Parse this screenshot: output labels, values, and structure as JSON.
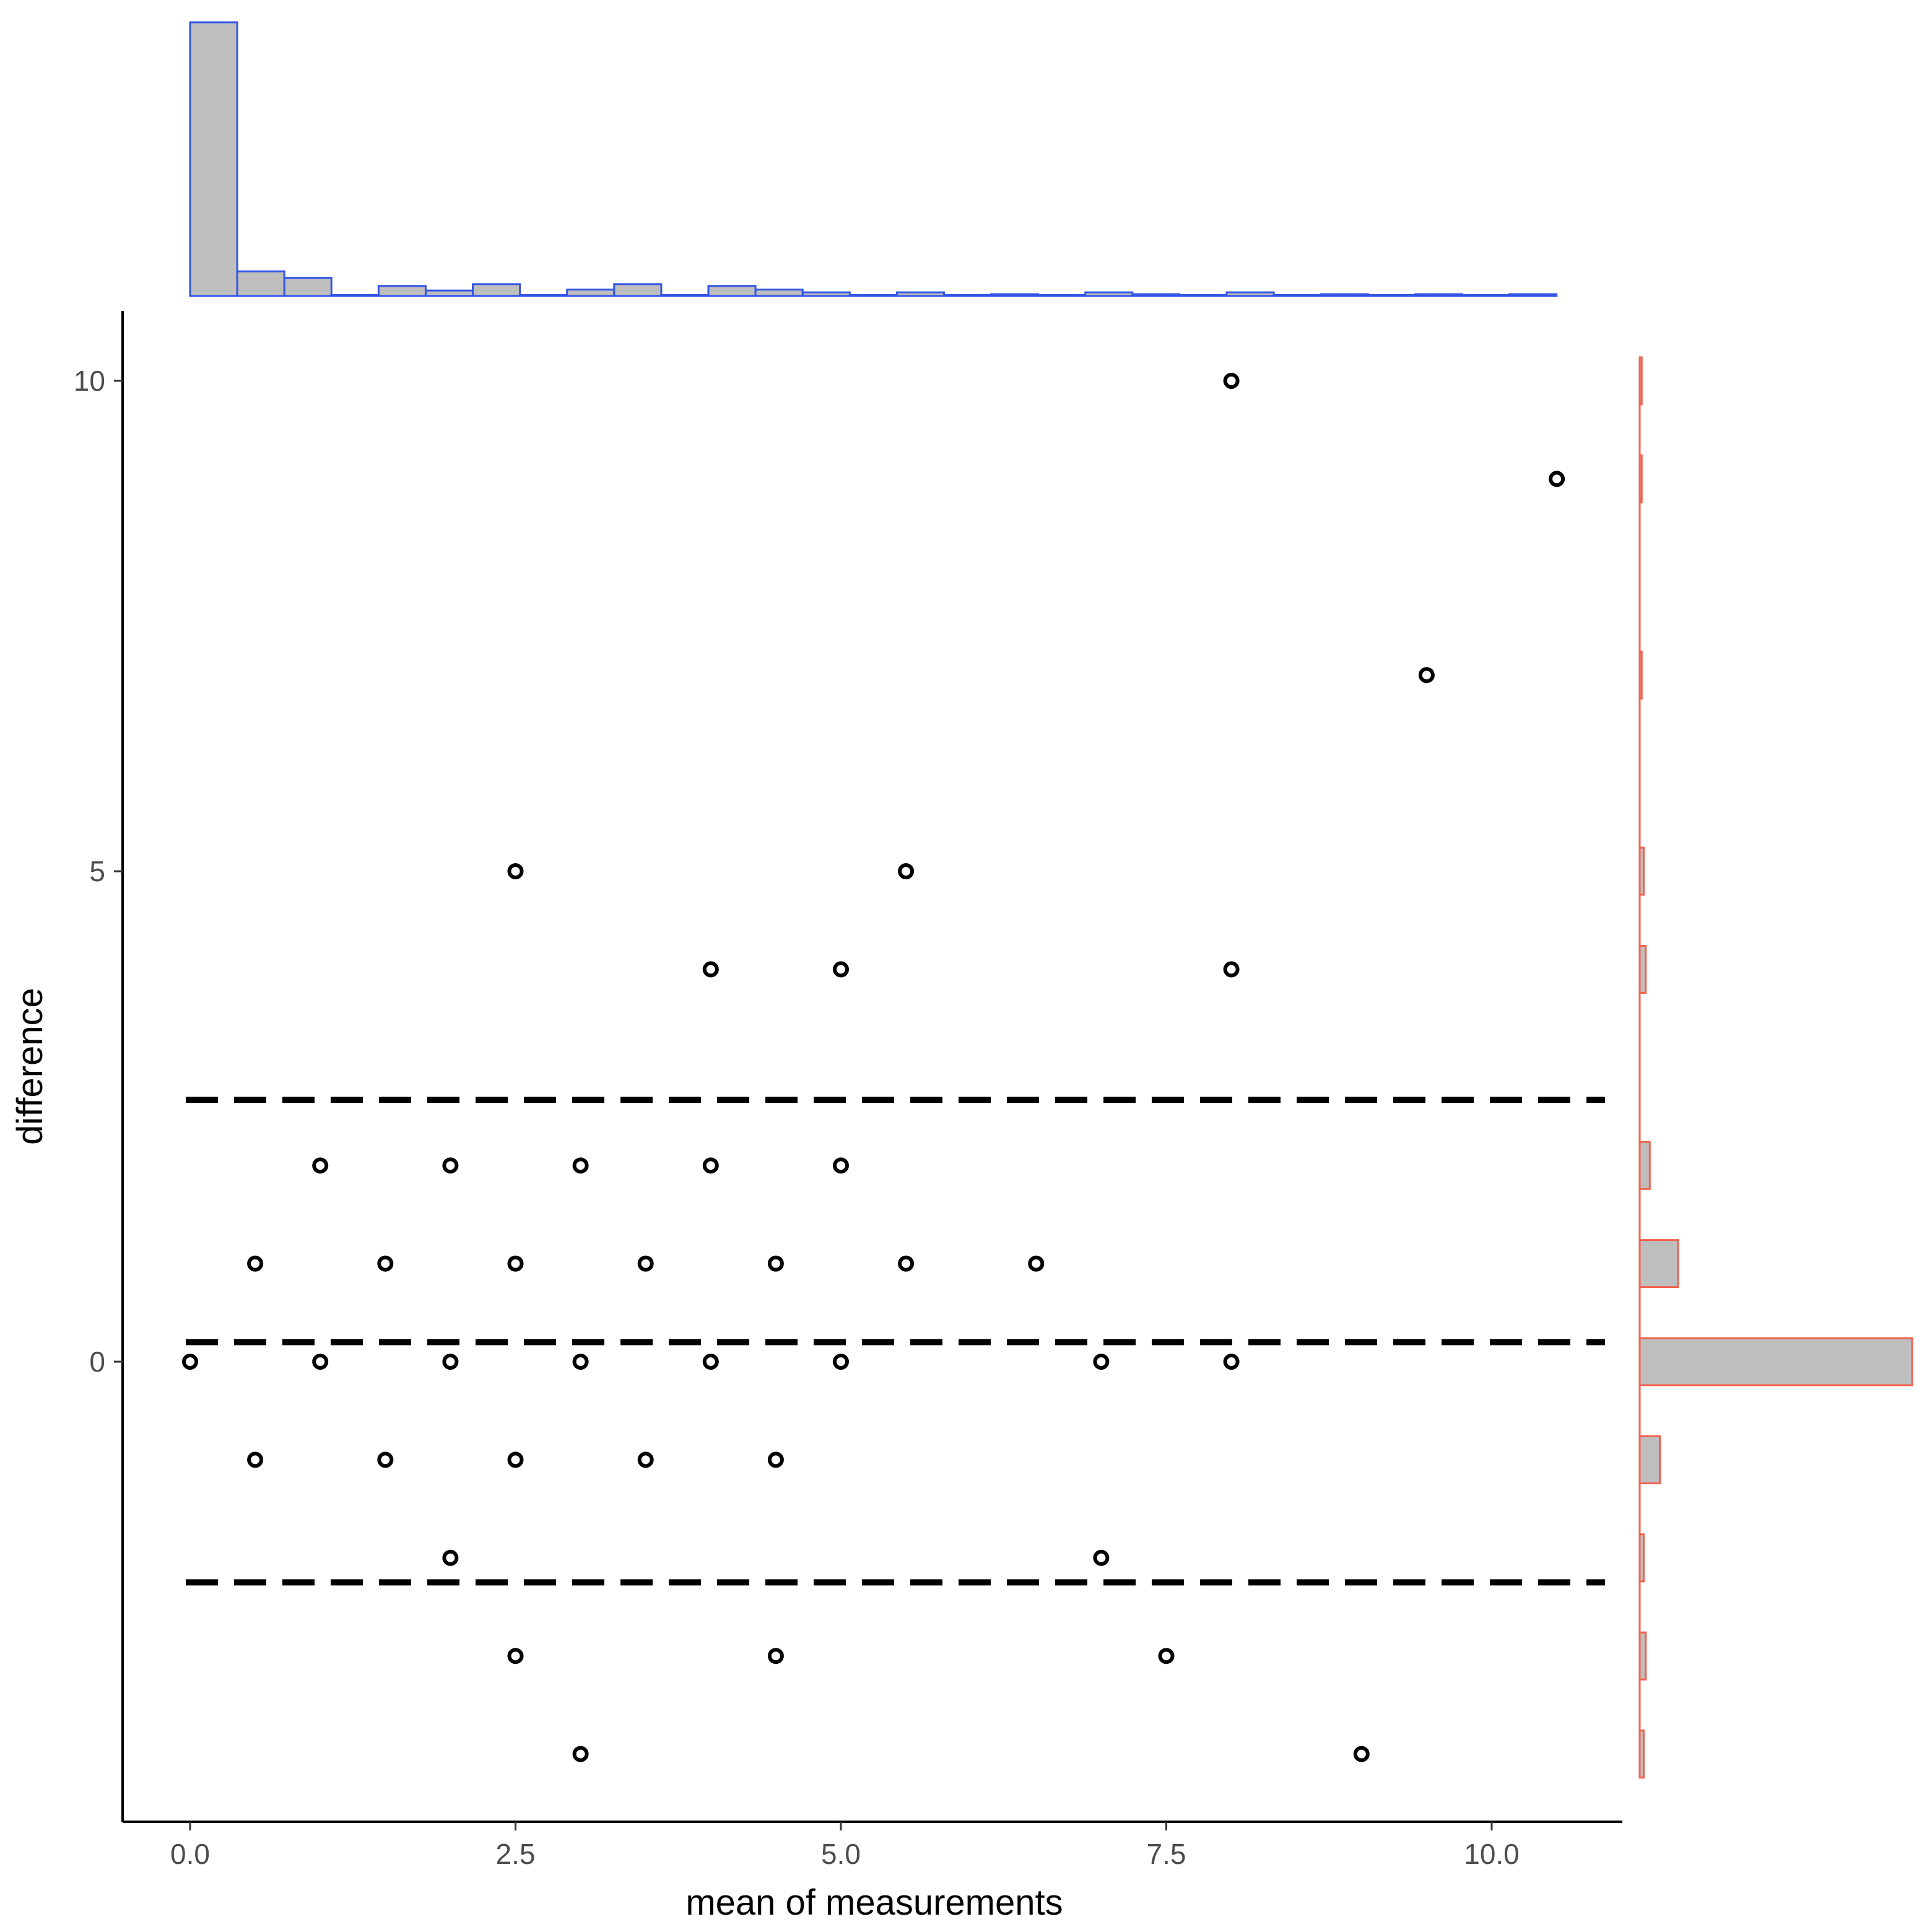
{
  "chart_data": [
    {
      "type": "scatter",
      "title": "",
      "xlabel": "mean of measurements",
      "ylabel": "difference",
      "xlim": [
        -0.25,
        11.0
      ],
      "ylim": [
        -4.7,
        10.7
      ],
      "xticks": [
        0.0,
        2.5,
        5.0,
        7.5,
        10.0
      ],
      "xtick_labels": [
        "0.0",
        "2.5",
        "5.0",
        "7.5",
        "10.0"
      ],
      "yticks": [
        0,
        5,
        10
      ],
      "ytick_labels": [
        "0",
        "5",
        "10"
      ],
      "grid": false,
      "point_style": "hollow circle",
      "points": [
        {
          "x": 8.0,
          "y": 10
        },
        {
          "x": 10.5,
          "y": 9
        },
        {
          "x": 9.5,
          "y": 7
        },
        {
          "x": 2.5,
          "y": 5
        },
        {
          "x": 5.5,
          "y": 5
        },
        {
          "x": 4.0,
          "y": 4
        },
        {
          "x": 5.0,
          "y": 4
        },
        {
          "x": 8.0,
          "y": 4
        },
        {
          "x": 1.0,
          "y": 2
        },
        {
          "x": 2.0,
          "y": 2
        },
        {
          "x": 3.0,
          "y": 2
        },
        {
          "x": 4.0,
          "y": 2
        },
        {
          "x": 5.0,
          "y": 2
        },
        {
          "x": 0.5,
          "y": 1
        },
        {
          "x": 1.5,
          "y": 1
        },
        {
          "x": 2.5,
          "y": 1
        },
        {
          "x": 3.5,
          "y": 1
        },
        {
          "x": 4.5,
          "y": 1
        },
        {
          "x": 5.5,
          "y": 1
        },
        {
          "x": 6.5,
          "y": 1
        },
        {
          "x": 0.0,
          "y": 0
        },
        {
          "x": 1.0,
          "y": 0
        },
        {
          "x": 2.0,
          "y": 0
        },
        {
          "x": 3.0,
          "y": 0
        },
        {
          "x": 4.0,
          "y": 0
        },
        {
          "x": 5.0,
          "y": 0
        },
        {
          "x": 7.0,
          "y": 0
        },
        {
          "x": 8.0,
          "y": 0
        },
        {
          "x": 0.5,
          "y": -1
        },
        {
          "x": 1.5,
          "y": -1
        },
        {
          "x": 2.5,
          "y": -1
        },
        {
          "x": 3.5,
          "y": -1
        },
        {
          "x": 4.5,
          "y": -1
        },
        {
          "x": 2.0,
          "y": -2
        },
        {
          "x": 7.0,
          "y": -2
        },
        {
          "x": 2.5,
          "y": -3
        },
        {
          "x": 4.5,
          "y": -3
        },
        {
          "x": 7.5,
          "y": -3
        },
        {
          "x": 3.0,
          "y": -4
        },
        {
          "x": 9.0,
          "y": -4
        }
      ],
      "reference_lines": [
        {
          "y": 2.67,
          "style": "dashed"
        },
        {
          "y": 0.2,
          "style": "dashed"
        },
        {
          "y": -2.25,
          "style": "dashed"
        }
      ]
    },
    {
      "type": "bar",
      "title": "",
      "orientation": "vertical",
      "position": "top marginal (distribution of mean of measurements)",
      "fill_color": "#bebebe",
      "border_color": "#3355e6",
      "bin_range": [
        0.0,
        10.5
      ],
      "bin_width": 0.362,
      "values": [
        30,
        2.7,
        2.0,
        0,
        1.1,
        0.6,
        1.3,
        0,
        0.7,
        1.3,
        0,
        1.1,
        0.7,
        0.4,
        0,
        0.4,
        0,
        0.2,
        0,
        0.4,
        0.2,
        0,
        0.4,
        0,
        0.2,
        0,
        0.2,
        0,
        0.2
      ]
    },
    {
      "type": "bar",
      "title": "",
      "orientation": "horizontal",
      "position": "right marginal (distribution of difference)",
      "fill_color": "#bebebe",
      "border_color": "#f4604d",
      "categories": [
        10,
        9,
        7,
        5,
        4,
        2,
        1,
        0,
        -1,
        -2,
        -3,
        -4
      ],
      "values": [
        1,
        1,
        1,
        2,
        3,
        5,
        19,
        135,
        10,
        2,
        3,
        2
      ]
    }
  ]
}
